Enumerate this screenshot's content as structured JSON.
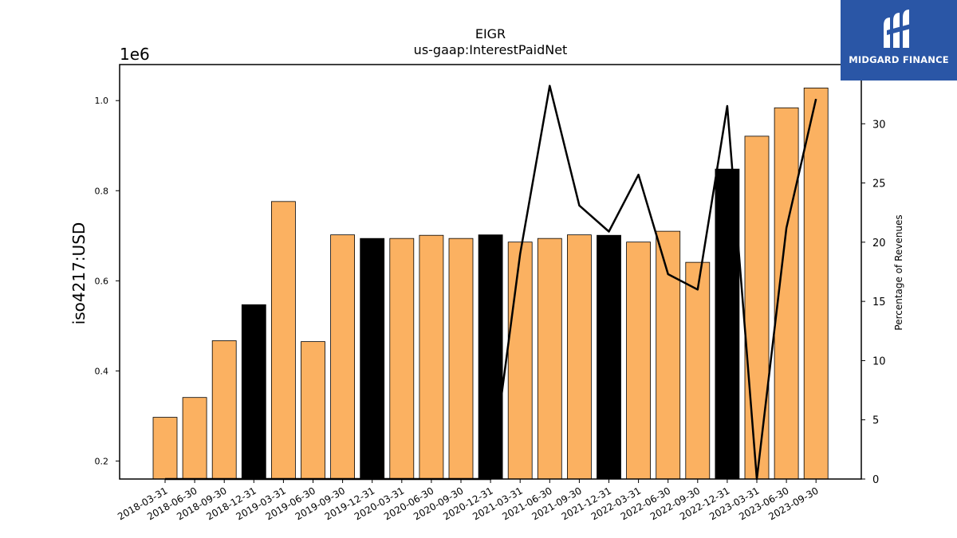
{
  "chart_data": {
    "type": "bar",
    "title": "EIGR",
    "subtitle": "us-gaap:InterestPaidNet",
    "ylabel": "iso4217:USD",
    "y_offset_label": "1e6",
    "y2label": "Percentage of Revenues",
    "ylim": [
      0.16,
      1.08
    ],
    "y2lim": [
      0,
      35.0
    ],
    "yticks": [
      "0.2",
      "0.4",
      "0.6",
      "0.8",
      "1.0"
    ],
    "y2ticks": [
      "0",
      "5",
      "10",
      "15",
      "20",
      "25",
      "30"
    ],
    "categories": [
      "2018-03-31",
      "2018-06-30",
      "2018-09-30",
      "2018-12-31",
      "2019-03-31",
      "2019-06-30",
      "2019-09-30",
      "2019-12-31",
      "2020-03-31",
      "2020-06-30",
      "2020-09-30",
      "2020-12-31",
      "2021-03-31",
      "2021-06-30",
      "2021-09-30",
      "2021-12-31",
      "2022-03-31",
      "2022-06-30",
      "2022-09-30",
      "2022-12-31",
      "2023-03-31",
      "2023-06-30",
      "2023-09-30"
    ],
    "values": [
      0.297,
      0.341,
      0.467,
      0.547,
      0.776,
      0.465,
      0.702,
      0.694,
      0.694,
      0.701,
      0.694,
      0.702,
      0.686,
      0.694,
      0.702,
      0.701,
      0.686,
      0.71,
      0.641,
      0.848,
      0.921,
      0.984,
      1.028
    ],
    "bar_colors": [
      "#fbb161",
      "#fbb161",
      "#fbb161",
      "#000000",
      "#fbb161",
      "#fbb161",
      "#fbb161",
      "#000000",
      "#fbb161",
      "#fbb161",
      "#fbb161",
      "#000000",
      "#fbb161",
      "#fbb161",
      "#fbb161",
      "#000000",
      "#fbb161",
      "#fbb161",
      "#fbb161",
      "#000000",
      "#fbb161",
      "#fbb161",
      "#fbb161"
    ],
    "line_series": {
      "axis": "right",
      "color": "#000000",
      "values": [
        0,
        0,
        0,
        0,
        0,
        0,
        0,
        0,
        0,
        0,
        0,
        0,
        19.0,
        33.2,
        23.1,
        20.9,
        25.7,
        17.3,
        16.0,
        31.5,
        0,
        21.2,
        32.1
      ]
    }
  },
  "logo": {
    "text": "MIDGARD FINANCE",
    "color": "#2a56a6"
  }
}
